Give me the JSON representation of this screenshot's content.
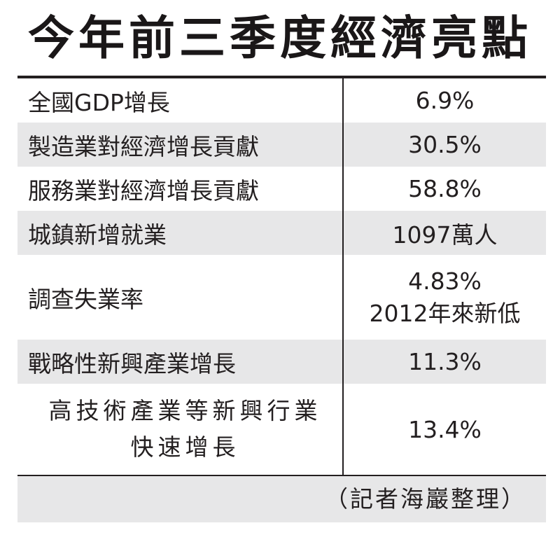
{
  "title": "今年前三季度經濟亮點",
  "rows": [
    {
      "label": "全國GDP增長",
      "value": "6.9%"
    },
    {
      "label": "製造業對經濟增長貢獻",
      "value": "30.5%"
    },
    {
      "label": "服務業對經濟增長貢獻",
      "value": "58.8%"
    },
    {
      "label": "城鎮新增就業",
      "value": "1097萬人"
    },
    {
      "label": "調查失業率",
      "value": "4.83%",
      "value2": "2012年來新低"
    },
    {
      "label": "戰略性新興產業增長",
      "value": "11.3%"
    },
    {
      "label": "高技術產業等新興行業",
      "label2": "快速增長",
      "value": "13.4%"
    }
  ],
  "credit": "（記者海巖整理）"
}
